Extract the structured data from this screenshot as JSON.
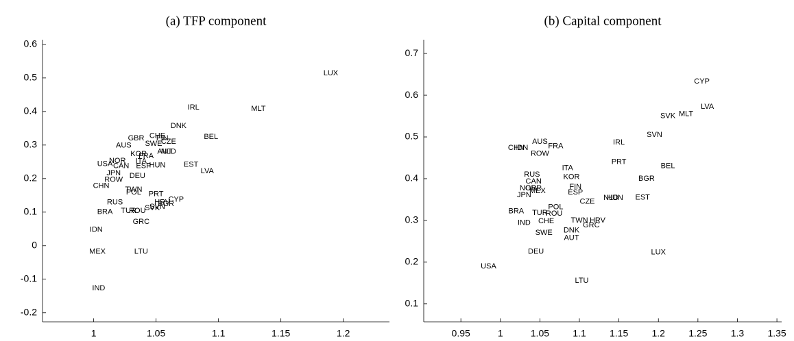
{
  "chart_data": [
    {
      "type": "scatter",
      "title": "(a) TFP component",
      "labels": [
        "LUX",
        "IRL",
        "MLT",
        "DNK",
        "BEL",
        "GBR",
        "CHE",
        "FIN",
        "CZE",
        "SWE",
        "AUS",
        "KOR",
        "FRA",
        "AUT",
        "NLD",
        "NOR",
        "ITA",
        "USA",
        "CAN",
        "ESP",
        "HUN",
        "EST",
        "LVA",
        "JPN",
        "DEU",
        "ROW",
        "CHN",
        "TWN",
        "POL",
        "PRT",
        "CYP",
        "HRV",
        "BGR",
        "SVN",
        "SVK",
        "RUS",
        "TUR",
        "ROU",
        "BRA",
        "GRC",
        "IDN",
        "MEX",
        "LTU",
        "IND"
      ],
      "x": [
        1.19,
        1.08,
        1.132,
        1.068,
        1.094,
        1.034,
        1.051,
        1.055,
        1.06,
        1.048,
        1.024,
        1.036,
        1.042,
        1.057,
        1.06,
        1.019,
        1.038,
        1.009,
        1.022,
        1.04,
        1.051,
        1.078,
        1.091,
        1.016,
        1.035,
        1.016,
        1.006,
        1.032,
        1.032,
        1.05,
        1.066,
        1.055,
        1.058,
        1.051,
        1.047,
        1.017,
        1.028,
        1.035,
        1.009,
        1.038,
        1.002,
        1.003,
        1.038,
        1.004
      ],
      "y": [
        0.514,
        0.412,
        0.408,
        0.357,
        0.324,
        0.32,
        0.327,
        0.32,
        0.31,
        0.304,
        0.298,
        0.273,
        0.267,
        0.28,
        0.28,
        0.253,
        0.251,
        0.243,
        0.237,
        0.237,
        0.239,
        0.241,
        0.222,
        0.216,
        0.208,
        0.196,
        0.178,
        0.167,
        0.159,
        0.153,
        0.137,
        0.129,
        0.124,
        0.116,
        0.112,
        0.129,
        0.104,
        0.104,
        0.1,
        0.071,
        0.047,
        -0.018,
        -0.018,
        -0.127
      ],
      "xlim": [
        0.959,
        1.237
      ],
      "ylim": [
        -0.227,
        0.614
      ],
      "xticks": [
        1,
        1.05,
        1.1,
        1.15,
        1.2
      ],
      "yticks": [
        -0.2,
        -0.1,
        0,
        0.1,
        0.2,
        0.3,
        0.4,
        0.5,
        0.6
      ]
    },
    {
      "type": "scatter",
      "title": "(b) Capital component",
      "labels": [
        "CYP",
        "LVA",
        "SVK",
        "MLT",
        "SVN",
        "IRL",
        "FRA",
        "AUS",
        "CHN",
        "IDN",
        "ROW",
        "PRT",
        "BEL",
        "ITA",
        "KOR",
        "BGR",
        "RUS",
        "CAN",
        "NOR",
        "GBR",
        "MEX",
        "FIN",
        "ESP",
        "JPN",
        "NLD",
        "HUN",
        "EST",
        "CZE",
        "POL",
        "BRA",
        "TUR",
        "ROU",
        "IND",
        "CHE",
        "TWN",
        "HRV",
        "GRC",
        "DNK",
        "SWE",
        "AUT",
        "DEU",
        "LUX",
        "USA",
        "LTU"
      ],
      "x": [
        1.255,
        1.262,
        1.212,
        1.235,
        1.195,
        1.15,
        1.07,
        1.05,
        1.02,
        1.027,
        1.05,
        1.15,
        1.212,
        1.085,
        1.09,
        1.185,
        1.04,
        1.042,
        1.035,
        1.042,
        1.047,
        1.095,
        1.095,
        1.03,
        1.14,
        1.145,
        1.18,
        1.11,
        1.07,
        1.02,
        1.05,
        1.068,
        1.03,
        1.058,
        1.1,
        1.123,
        1.115,
        1.09,
        1.055,
        1.09,
        1.045,
        1.2,
        0.985,
        1.103
      ],
      "y": [
        0.633,
        0.572,
        0.55,
        0.555,
        0.505,
        0.487,
        0.478,
        0.488,
        0.474,
        0.474,
        0.46,
        0.44,
        0.43,
        0.425,
        0.404,
        0.4,
        0.41,
        0.393,
        0.377,
        0.377,
        0.37,
        0.38,
        0.367,
        0.36,
        0.354,
        0.354,
        0.355,
        0.345,
        0.332,
        0.322,
        0.318,
        0.316,
        0.294,
        0.298,
        0.3,
        0.3,
        0.288,
        0.276,
        0.27,
        0.258,
        0.225,
        0.223,
        0.19,
        0.155
      ],
      "xlim": [
        0.903,
        1.356
      ],
      "ylim": [
        0.057,
        0.733
      ],
      "xticks": [
        0.95,
        1,
        1.05,
        1.1,
        1.15,
        1.2,
        1.25,
        1.3,
        1.35
      ],
      "yticks": [
        0.1,
        0.2,
        0.3,
        0.4,
        0.5,
        0.6,
        0.7
      ]
    }
  ]
}
